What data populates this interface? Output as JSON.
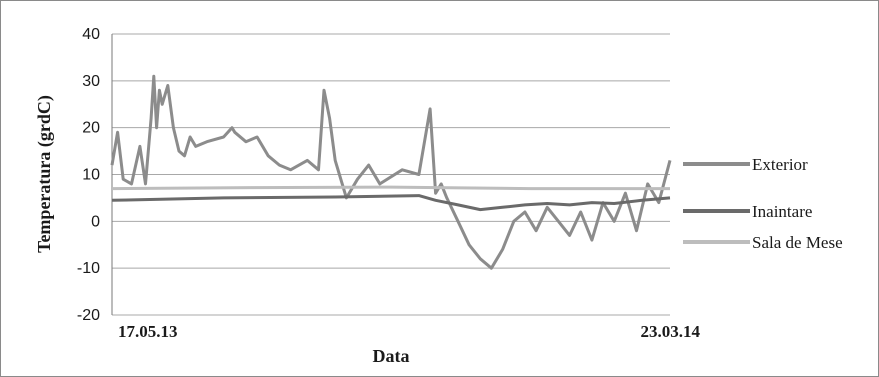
{
  "chart_data": {
    "type": "line",
    "title": "",
    "xlabel": "Data",
    "ylabel": "Temperatura  (grdC)",
    "x_tick_labels": [
      "17.05.13",
      "23.03.14"
    ],
    "x_range": [
      "17.05.13",
      "23.03.14"
    ],
    "ylim": [
      -20,
      40
    ],
    "yticks": [
      40,
      30,
      20,
      10,
      0,
      -10,
      -20
    ],
    "grid": "horizontal",
    "legend_position": "right",
    "series": [
      {
        "name": "Exterior",
        "color": "#8c8c8c",
        "x": [
          0,
          0.01,
          0.02,
          0.035,
          0.05,
          0.06,
          0.07,
          0.075,
          0.08,
          0.085,
          0.09,
          0.1,
          0.11,
          0.12,
          0.13,
          0.14,
          0.15,
          0.17,
          0.2,
          0.215,
          0.22,
          0.24,
          0.26,
          0.28,
          0.3,
          0.32,
          0.35,
          0.37,
          0.38,
          0.39,
          0.4,
          0.42,
          0.44,
          0.46,
          0.48,
          0.52,
          0.55,
          0.57,
          0.58,
          0.59,
          0.6,
          0.62,
          0.64,
          0.66,
          0.68,
          0.7,
          0.72,
          0.74,
          0.76,
          0.78,
          0.8,
          0.82,
          0.84,
          0.86,
          0.88,
          0.9,
          0.92,
          0.94,
          0.96,
          0.98,
          1.0
        ],
        "y": [
          12,
          19,
          9,
          8,
          16,
          8,
          22,
          31,
          20,
          28,
          25,
          29,
          20,
          15,
          14,
          18,
          16,
          17,
          18,
          20,
          19,
          17,
          18,
          14,
          12,
          11,
          13,
          11,
          28,
          22,
          13,
          5,
          9,
          12,
          8,
          11,
          10,
          24,
          6,
          8,
          5,
          0,
          -5,
          -8,
          -10,
          -6,
          0,
          2,
          -2,
          3,
          0,
          -3,
          2,
          -4,
          4,
          0,
          6,
          -2,
          8,
          4,
          13
        ]
      },
      {
        "name": "Inaintare",
        "color": "#6a6a6a",
        "x": [
          0,
          0.2,
          0.4,
          0.55,
          0.58,
          0.62,
          0.66,
          0.7,
          0.74,
          0.78,
          0.82,
          0.86,
          0.9,
          0.95,
          1.0
        ],
        "y": [
          4.5,
          5,
          5.2,
          5.5,
          4.5,
          3.5,
          2.5,
          3,
          3.5,
          3.8,
          3.5,
          4,
          3.8,
          4.5,
          5
        ]
      },
      {
        "name": "Sala de Mese",
        "color": "#bdbdbd",
        "x": [
          0,
          0.25,
          0.5,
          0.75,
          1.0
        ],
        "y": [
          7,
          7.2,
          7.3,
          7,
          7
        ]
      }
    ]
  }
}
